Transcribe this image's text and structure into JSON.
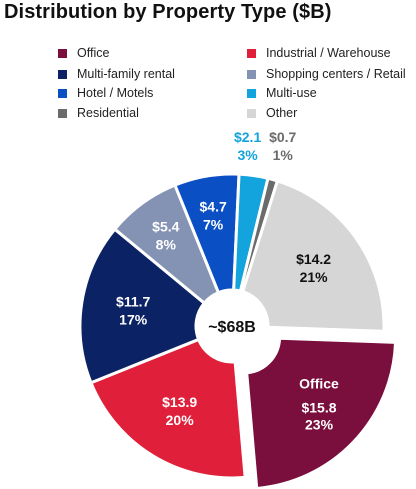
{
  "chart_data": {
    "type": "pie",
    "title": "Distribution by Property Type ($B)",
    "center_label": "~$68B",
    "slices": [
      {
        "name": "Office",
        "value": 15.8,
        "value_label": "$15.8",
        "percent_label": "23%",
        "color": "#7a0e3c",
        "exploded": true,
        "highlight_label": "Office"
      },
      {
        "name": "Industrial / Warehouse",
        "value": 13.9,
        "value_label": "$13.9",
        "percent_label": "20%",
        "color": "#e0203a"
      },
      {
        "name": "Multi-family rental",
        "value": 11.7,
        "value_label": "$11.7",
        "percent_label": "17%",
        "color": "#0b2265"
      },
      {
        "name": "Shopping centers / Retail",
        "value": 5.4,
        "value_label": "$5.4",
        "percent_label": "8%",
        "color": "#8492b4"
      },
      {
        "name": "Hotel / Motels",
        "value": 4.7,
        "value_label": "$4.7",
        "percent_label": "7%",
        "color": "#0b4fc4"
      },
      {
        "name": "Multi-use",
        "value": 2.1,
        "value_label": "$2.1",
        "percent_label": "3%",
        "color": "#13a3dd"
      },
      {
        "name": "Residential",
        "value": 0.7,
        "value_label": "$0.7",
        "percent_label": "1%",
        "color": "#6b6b6b"
      },
      {
        "name": "Other",
        "value": 14.2,
        "value_label": "$14.2",
        "percent_label": "21%",
        "color": "#d6d6d6"
      }
    ],
    "legend": [
      {
        "label": "Office",
        "color": "#7a0e3c"
      },
      {
        "label": "Industrial / Warehouse",
        "color": "#e0203a"
      },
      {
        "label": "Multi-family rental",
        "color": "#0b2265"
      },
      {
        "label": "Shopping centers / Retail",
        "color": "#8492b4"
      },
      {
        "label": "Hotel / Motels",
        "color": "#0b4fc4"
      },
      {
        "label": "Multi-use",
        "color": "#13a3dd"
      },
      {
        "label": "Residential",
        "color": "#6b6b6b"
      },
      {
        "label": "Other",
        "color": "#d6d6d6"
      }
    ]
  }
}
